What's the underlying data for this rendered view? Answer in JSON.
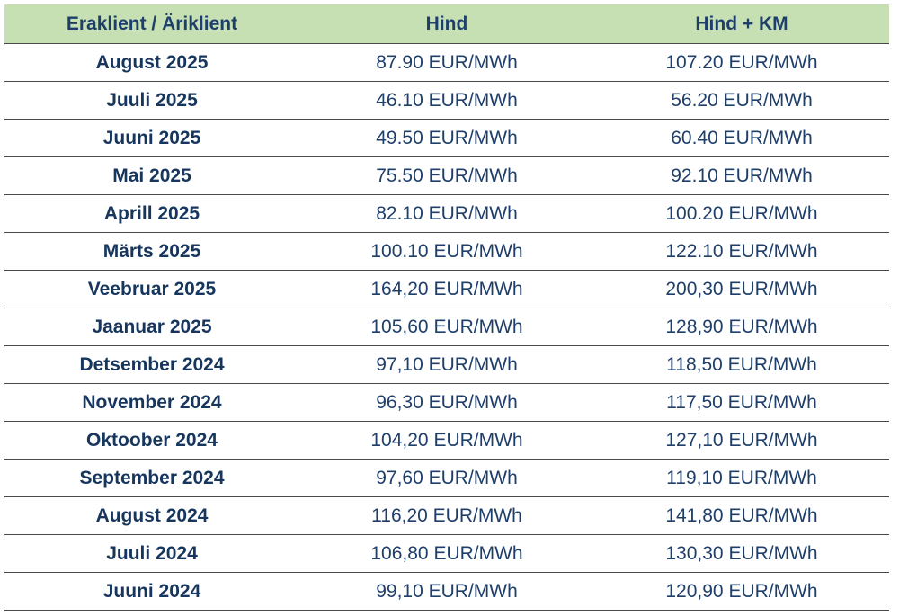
{
  "table": {
    "headers": [
      "Eraklient / Äriklient",
      "Hind",
      "Hind + KM"
    ],
    "rows": [
      [
        "August 2025",
        "87.90 EUR/MWh",
        "107.20 EUR/MWh"
      ],
      [
        "Juuli 2025",
        "46.10 EUR/MWh",
        "56.20 EUR/MWh"
      ],
      [
        "Juuni 2025",
        "49.50 EUR/MWh",
        "60.40 EUR/MWh"
      ],
      [
        "Mai 2025",
        "75.50 EUR/MWh",
        "92.10 EUR/MWh"
      ],
      [
        "Aprill 2025",
        "82.10 EUR/MWh",
        "100.20 EUR/MWh"
      ],
      [
        "Märts 2025",
        "100.10 EUR/MWh",
        "122.10 EUR/MWh"
      ],
      [
        "Veebruar 2025",
        "164,20 EUR/MWh",
        "200,30 EUR/MWh"
      ],
      [
        "Jaanuar 2025",
        "105,60 EUR/MWh",
        "128,90 EUR/MWh"
      ],
      [
        "Detsember 2024",
        "97,10 EUR/MWh",
        "118,50 EUR/MWh"
      ],
      [
        "November 2024",
        "96,30 EUR/MWh",
        "117,50 EUR/MWh"
      ],
      [
        "Oktoober 2024",
        "104,20 EUR/MWh",
        "127,10 EUR/MWh"
      ],
      [
        "September 2024",
        "97,60 EUR/MWh",
        "119,10 EUR/MWh"
      ],
      [
        "August 2024",
        "116,20 EUR/MWh",
        "141,80 EUR/MWh"
      ],
      [
        "Juuli 2024",
        "106,80 EUR/MWh",
        "130,30 EUR/MWh"
      ],
      [
        "Juuni 2024",
        "99,10 EUR/MWh",
        "120,90 EUR/MWh"
      ]
    ]
  },
  "colors": {
    "header_background": "#c6e0b4",
    "header_text": "#1f3f6b",
    "body_text": "#1f3f6b",
    "row_divider": "#4a4a4a"
  }
}
